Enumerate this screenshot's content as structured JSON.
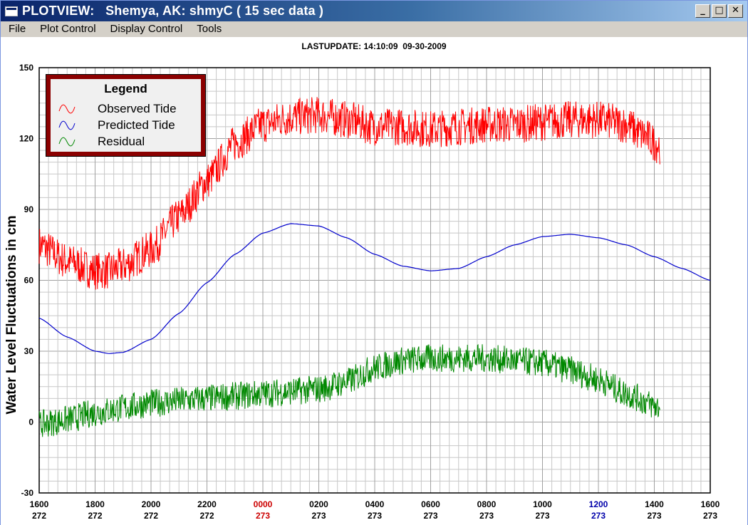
{
  "window": {
    "title": "PLOTVIEW:   Shemya, AK: shmyC ( 15 sec data )",
    "buttons": {
      "minimize": "_",
      "maximize": "□",
      "close": "✕"
    }
  },
  "menu": {
    "items": [
      {
        "label": "File"
      },
      {
        "label": "Plot Control"
      },
      {
        "label": "Display Control"
      },
      {
        "label": "Tools"
      }
    ]
  },
  "header": {
    "last_update": "LASTUPDATE: 14:10:09  09-30-2009"
  },
  "legend": {
    "title": "Legend",
    "items": [
      {
        "label": "Observed Tide",
        "color": "#ff0000",
        "icon": "wave-icon"
      },
      {
        "label": "Predicted Tide",
        "color": "#0000cc",
        "icon": "wave-icon"
      },
      {
        "label": "Residual",
        "color": "#008800",
        "icon": "wave-icon"
      }
    ]
  },
  "colors": {
    "observed": "#ff0000",
    "predicted": "#0000cc",
    "residual": "#008800",
    "day_change_label_0000": "#cc0000",
    "day_change_label_1200": "#0000aa"
  },
  "chart_data": {
    "type": "line",
    "ylabel": "Water Level Fluctuations in cm",
    "ylim": [
      -30,
      150
    ],
    "yticks": [
      "150",
      "120",
      "90",
      "60",
      "30",
      "0",
      "-30"
    ],
    "xlim": [
      0,
      24
    ],
    "xticks": [
      {
        "time": "1600",
        "day": "272",
        "color": "#000000"
      },
      {
        "time": "1800",
        "day": "272",
        "color": "#000000"
      },
      {
        "time": "2000",
        "day": "272",
        "color": "#000000"
      },
      {
        "time": "2200",
        "day": "272",
        "color": "#000000"
      },
      {
        "time": "0000",
        "day": "273",
        "color": "#cc0000"
      },
      {
        "time": "0200",
        "day": "273",
        "color": "#000000"
      },
      {
        "time": "0400",
        "day": "273",
        "color": "#000000"
      },
      {
        "time": "0600",
        "day": "273",
        "color": "#000000"
      },
      {
        "time": "0800",
        "day": "273",
        "color": "#000000"
      },
      {
        "time": "1000",
        "day": "273",
        "color": "#000000"
      },
      {
        "time": "1200",
        "day": "273",
        "color": "#0000aa"
      },
      {
        "time": "1400",
        "day": "273",
        "color": "#000000"
      },
      {
        "time": "1600",
        "day": "273",
        "color": "#000000"
      }
    ],
    "series": [
      {
        "name": "Observed Tide",
        "color": "#ff0000",
        "noise_cm": 8,
        "x": [
          0,
          1,
          2,
          2.5,
          3,
          4,
          5,
          6,
          7,
          8,
          9,
          10,
          11,
          12,
          13,
          14,
          15,
          16,
          17,
          18,
          19,
          20,
          21,
          21.5,
          22.2
        ],
        "y": [
          75,
          68,
          64,
          64,
          66,
          73,
          87,
          102,
          118,
          126,
          129,
          130,
          128,
          125,
          125,
          124,
          125,
          126,
          126,
          127,
          128,
          128,
          126,
          122,
          117
        ]
      },
      {
        "name": "Predicted Tide",
        "color": "#0000cc",
        "noise_cm": 0,
        "x": [
          0,
          1,
          2,
          2.5,
          3,
          4,
          5,
          6,
          7,
          8,
          9,
          10,
          11,
          12,
          13,
          14,
          15,
          16,
          17,
          18,
          19,
          20,
          21,
          22,
          23,
          24
        ],
        "y": [
          44,
          36,
          30,
          29,
          29.5,
          35,
          46,
          59,
          71,
          80,
          84,
          83,
          78,
          71,
          66,
          64,
          65,
          70,
          75,
          78.5,
          79.5,
          78,
          75,
          70,
          65,
          60
        ]
      },
      {
        "name": "Residual",
        "color": "#008800",
        "noise_cm": 6,
        "x": [
          0,
          1,
          2,
          3,
          4,
          5,
          6,
          7,
          8,
          9,
          10,
          11,
          12,
          13,
          14,
          15,
          16,
          17,
          18,
          19,
          20,
          21,
          22.2
        ],
        "y": [
          -1,
          1,
          4,
          6,
          8,
          9,
          10,
          11,
          12,
          13,
          14,
          17,
          23,
          26,
          27,
          27,
          27,
          26,
          25,
          22,
          18,
          12,
          6
        ]
      }
    ],
    "grid": true
  }
}
